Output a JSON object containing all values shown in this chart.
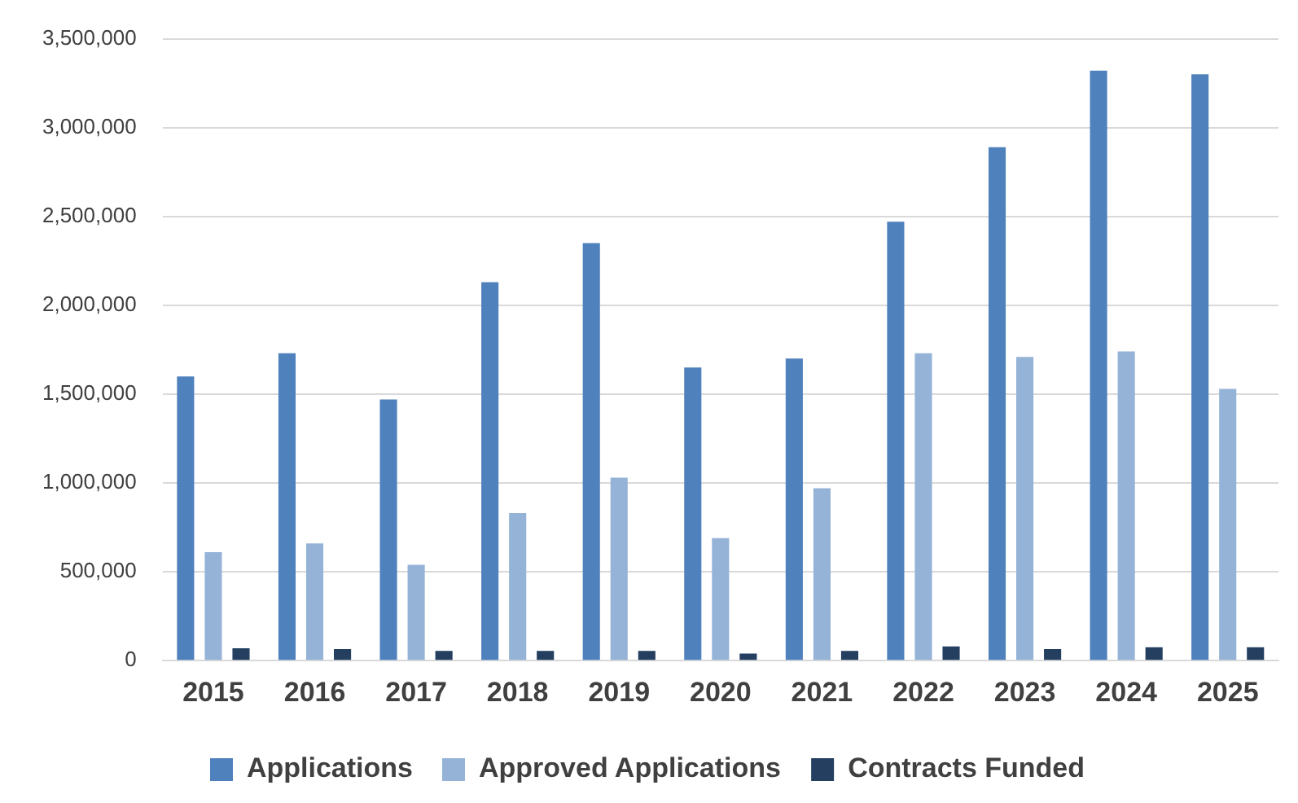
{
  "chart_data": {
    "type": "bar",
    "categories": [
      "2015",
      "2016",
      "2017",
      "2018",
      "2019",
      "2020",
      "2021",
      "2022",
      "2023",
      "2024",
      "2025"
    ],
    "series": [
      {
        "name": "Applications",
        "color": "#4f81bd",
        "values": [
          1600000,
          1730000,
          1470000,
          2130000,
          2350000,
          1650000,
          1700000,
          2470000,
          2890000,
          3320000,
          3300000
        ]
      },
      {
        "name": "Approved Applications",
        "color": "#95b3d7",
        "values": [
          610000,
          660000,
          540000,
          830000,
          1030000,
          690000,
          970000,
          1730000,
          1710000,
          1740000,
          1530000
        ]
      },
      {
        "name": "Contracts Funded",
        "color": "#243f60",
        "values": [
          70000,
          65000,
          55000,
          55000,
          55000,
          40000,
          55000,
          80000,
          65000,
          75000,
          75000
        ]
      }
    ],
    "ylim": [
      0,
      3500000
    ],
    "yticks": [
      0,
      {
        "value": 500000,
        "label": "500,000"
      },
      {
        "value": 1000000,
        "label": "1,000,000"
      },
      {
        "value": 1500000,
        "label": "1,500,000"
      },
      {
        "value": 2000000,
        "label": "2,000,000"
      },
      {
        "value": 2500000,
        "label": "2,500,000"
      },
      {
        "value": 3000000,
        "label": "3,000,000"
      },
      {
        "value": 3500000,
        "label": "3,500,000"
      }
    ],
    "grid": "y",
    "legend": "bottom"
  }
}
